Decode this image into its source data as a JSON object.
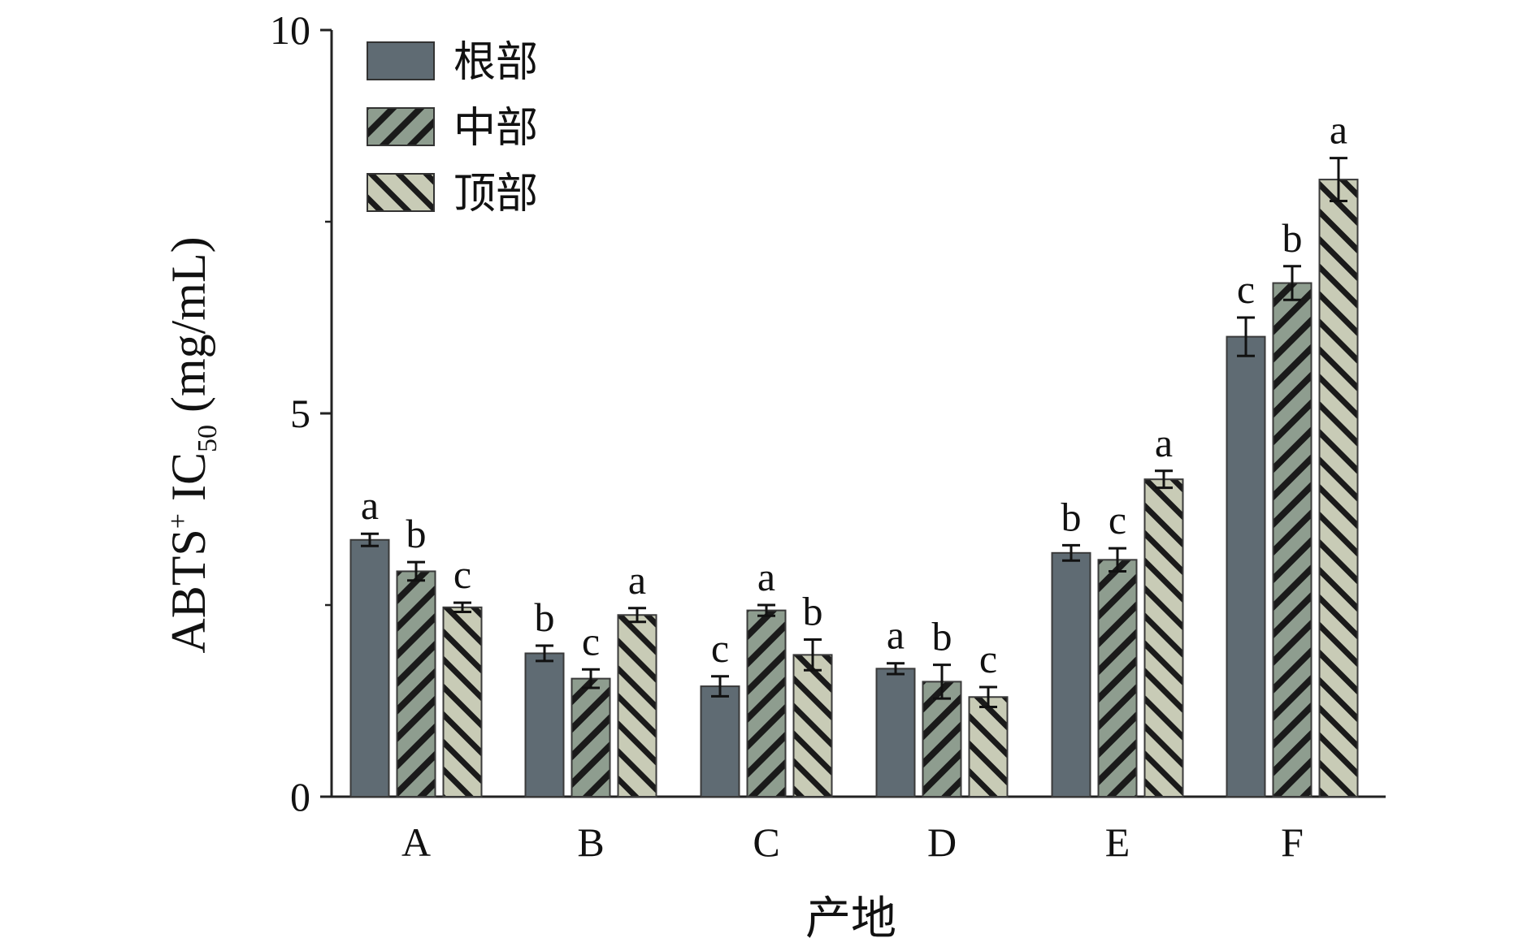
{
  "chart_data": {
    "type": "bar",
    "title": "",
    "xlabel": "产地",
    "ylabel": {
      "main": "ABTS",
      "sup": "+",
      "ic": " IC",
      "sub": "50",
      "unit": " (mg/mL)"
    },
    "ylim": [
      0,
      10
    ],
    "yticks": [
      0,
      5,
      10
    ],
    "yticks_minor": [
      2.5,
      7.5
    ],
    "grid": false,
    "legend_position": "top-left",
    "categories": [
      "A",
      "B",
      "C",
      "D",
      "E",
      "F"
    ],
    "series": [
      {
        "name": "根部",
        "pattern": "solid",
        "color": "#5f6b73",
        "values": [
          3.35,
          1.87,
          1.44,
          1.67,
          3.18,
          6.0
        ],
        "errors": [
          0.08,
          0.1,
          0.13,
          0.07,
          0.1,
          0.25
        ],
        "labels": [
          "a",
          "b",
          "c",
          "a",
          "b",
          "c"
        ]
      },
      {
        "name": "中部",
        "pattern": "hatch-forward",
        "color": "#8e9d8f",
        "values": [
          2.94,
          1.54,
          2.43,
          1.5,
          3.09,
          6.7
        ],
        "errors": [
          0.12,
          0.12,
          0.07,
          0.22,
          0.15,
          0.22
        ],
        "labels": [
          "b",
          "c",
          "a",
          "b",
          "c",
          "b"
        ]
      },
      {
        "name": "顶部",
        "pattern": "hatch-back",
        "color": "#c8cbb6",
        "values": [
          2.47,
          2.37,
          1.85,
          1.3,
          4.14,
          8.05
        ],
        "errors": [
          0.06,
          0.09,
          0.2,
          0.13,
          0.11,
          0.28
        ],
        "labels": [
          "c",
          "a",
          "b",
          "c",
          "a",
          "a"
        ]
      }
    ]
  }
}
